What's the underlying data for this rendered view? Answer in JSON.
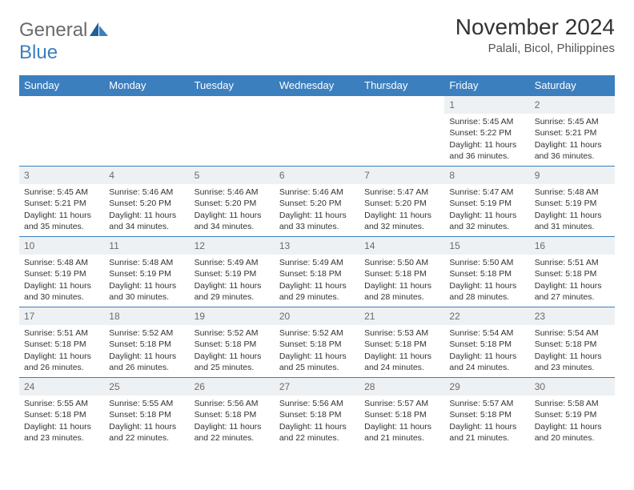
{
  "brand": {
    "general": "General",
    "blue": "Blue"
  },
  "header": {
    "title": "November 2024",
    "subtitle": "Palali, Bicol, Philippines"
  },
  "colors": {
    "header_bg": "#3b7fbf",
    "header_text": "#ffffff",
    "daynum_bg": "#eef1f3",
    "row_border": "#3b7fbf",
    "text": "#333333"
  },
  "weekdays": [
    "Sunday",
    "Monday",
    "Tuesday",
    "Wednesday",
    "Thursday",
    "Friday",
    "Saturday"
  ],
  "rows": [
    [
      {
        "n": "",
        "sunrise": "",
        "sunset": "",
        "daylight": ""
      },
      {
        "n": "",
        "sunrise": "",
        "sunset": "",
        "daylight": ""
      },
      {
        "n": "",
        "sunrise": "",
        "sunset": "",
        "daylight": ""
      },
      {
        "n": "",
        "sunrise": "",
        "sunset": "",
        "daylight": ""
      },
      {
        "n": "",
        "sunrise": "",
        "sunset": "",
        "daylight": ""
      },
      {
        "n": "1",
        "sunrise": "Sunrise: 5:45 AM",
        "sunset": "Sunset: 5:22 PM",
        "daylight": "Daylight: 11 hours and 36 minutes."
      },
      {
        "n": "2",
        "sunrise": "Sunrise: 5:45 AM",
        "sunset": "Sunset: 5:21 PM",
        "daylight": "Daylight: 11 hours and 36 minutes."
      }
    ],
    [
      {
        "n": "3",
        "sunrise": "Sunrise: 5:45 AM",
        "sunset": "Sunset: 5:21 PM",
        "daylight": "Daylight: 11 hours and 35 minutes."
      },
      {
        "n": "4",
        "sunrise": "Sunrise: 5:46 AM",
        "sunset": "Sunset: 5:20 PM",
        "daylight": "Daylight: 11 hours and 34 minutes."
      },
      {
        "n": "5",
        "sunrise": "Sunrise: 5:46 AM",
        "sunset": "Sunset: 5:20 PM",
        "daylight": "Daylight: 11 hours and 34 minutes."
      },
      {
        "n": "6",
        "sunrise": "Sunrise: 5:46 AM",
        "sunset": "Sunset: 5:20 PM",
        "daylight": "Daylight: 11 hours and 33 minutes."
      },
      {
        "n": "7",
        "sunrise": "Sunrise: 5:47 AM",
        "sunset": "Sunset: 5:20 PM",
        "daylight": "Daylight: 11 hours and 32 minutes."
      },
      {
        "n": "8",
        "sunrise": "Sunrise: 5:47 AM",
        "sunset": "Sunset: 5:19 PM",
        "daylight": "Daylight: 11 hours and 32 minutes."
      },
      {
        "n": "9",
        "sunrise": "Sunrise: 5:48 AM",
        "sunset": "Sunset: 5:19 PM",
        "daylight": "Daylight: 11 hours and 31 minutes."
      }
    ],
    [
      {
        "n": "10",
        "sunrise": "Sunrise: 5:48 AM",
        "sunset": "Sunset: 5:19 PM",
        "daylight": "Daylight: 11 hours and 30 minutes."
      },
      {
        "n": "11",
        "sunrise": "Sunrise: 5:48 AM",
        "sunset": "Sunset: 5:19 PM",
        "daylight": "Daylight: 11 hours and 30 minutes."
      },
      {
        "n": "12",
        "sunrise": "Sunrise: 5:49 AM",
        "sunset": "Sunset: 5:19 PM",
        "daylight": "Daylight: 11 hours and 29 minutes."
      },
      {
        "n": "13",
        "sunrise": "Sunrise: 5:49 AM",
        "sunset": "Sunset: 5:18 PM",
        "daylight": "Daylight: 11 hours and 29 minutes."
      },
      {
        "n": "14",
        "sunrise": "Sunrise: 5:50 AM",
        "sunset": "Sunset: 5:18 PM",
        "daylight": "Daylight: 11 hours and 28 minutes."
      },
      {
        "n": "15",
        "sunrise": "Sunrise: 5:50 AM",
        "sunset": "Sunset: 5:18 PM",
        "daylight": "Daylight: 11 hours and 28 minutes."
      },
      {
        "n": "16",
        "sunrise": "Sunrise: 5:51 AM",
        "sunset": "Sunset: 5:18 PM",
        "daylight": "Daylight: 11 hours and 27 minutes."
      }
    ],
    [
      {
        "n": "17",
        "sunrise": "Sunrise: 5:51 AM",
        "sunset": "Sunset: 5:18 PM",
        "daylight": "Daylight: 11 hours and 26 minutes."
      },
      {
        "n": "18",
        "sunrise": "Sunrise: 5:52 AM",
        "sunset": "Sunset: 5:18 PM",
        "daylight": "Daylight: 11 hours and 26 minutes."
      },
      {
        "n": "19",
        "sunrise": "Sunrise: 5:52 AM",
        "sunset": "Sunset: 5:18 PM",
        "daylight": "Daylight: 11 hours and 25 minutes."
      },
      {
        "n": "20",
        "sunrise": "Sunrise: 5:52 AM",
        "sunset": "Sunset: 5:18 PM",
        "daylight": "Daylight: 11 hours and 25 minutes."
      },
      {
        "n": "21",
        "sunrise": "Sunrise: 5:53 AM",
        "sunset": "Sunset: 5:18 PM",
        "daylight": "Daylight: 11 hours and 24 minutes."
      },
      {
        "n": "22",
        "sunrise": "Sunrise: 5:54 AM",
        "sunset": "Sunset: 5:18 PM",
        "daylight": "Daylight: 11 hours and 24 minutes."
      },
      {
        "n": "23",
        "sunrise": "Sunrise: 5:54 AM",
        "sunset": "Sunset: 5:18 PM",
        "daylight": "Daylight: 11 hours and 23 minutes."
      }
    ],
    [
      {
        "n": "24",
        "sunrise": "Sunrise: 5:55 AM",
        "sunset": "Sunset: 5:18 PM",
        "daylight": "Daylight: 11 hours and 23 minutes."
      },
      {
        "n": "25",
        "sunrise": "Sunrise: 5:55 AM",
        "sunset": "Sunset: 5:18 PM",
        "daylight": "Daylight: 11 hours and 22 minutes."
      },
      {
        "n": "26",
        "sunrise": "Sunrise: 5:56 AM",
        "sunset": "Sunset: 5:18 PM",
        "daylight": "Daylight: 11 hours and 22 minutes."
      },
      {
        "n": "27",
        "sunrise": "Sunrise: 5:56 AM",
        "sunset": "Sunset: 5:18 PM",
        "daylight": "Daylight: 11 hours and 22 minutes."
      },
      {
        "n": "28",
        "sunrise": "Sunrise: 5:57 AM",
        "sunset": "Sunset: 5:18 PM",
        "daylight": "Daylight: 11 hours and 21 minutes."
      },
      {
        "n": "29",
        "sunrise": "Sunrise: 5:57 AM",
        "sunset": "Sunset: 5:18 PM",
        "daylight": "Daylight: 11 hours and 21 minutes."
      },
      {
        "n": "30",
        "sunrise": "Sunrise: 5:58 AM",
        "sunset": "Sunset: 5:19 PM",
        "daylight": "Daylight: 11 hours and 20 minutes."
      }
    ]
  ]
}
